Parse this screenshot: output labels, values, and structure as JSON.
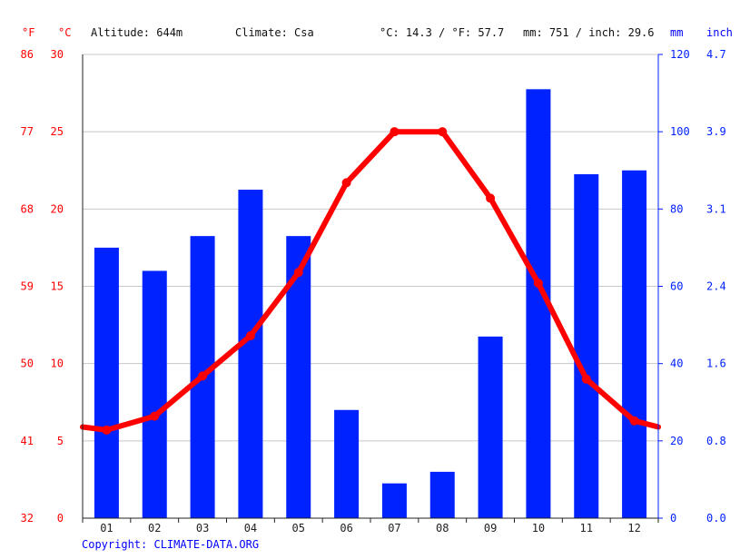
{
  "header": {
    "f_unit": "°F",
    "c_unit": "°C",
    "altitude": "Altitude: 644m",
    "climate": "Climate: Csa",
    "temp_summary": "°C: 14.3 / °F: 57.7",
    "precip_summary": "mm: 751 / inch: 29.6",
    "mm_unit": "mm",
    "inch_unit": "inch"
  },
  "footer": {
    "copyright": "Copyright: CLIMATE-DATA.ORG"
  },
  "colors": {
    "temperature": "#ff0000",
    "precipitation": "#0022ff",
    "grid": "#c8c8c8"
  },
  "chart_data": {
    "type": "bar+line",
    "categories": [
      "01",
      "02",
      "03",
      "04",
      "05",
      "06",
      "07",
      "08",
      "09",
      "10",
      "11",
      "12"
    ],
    "series": [
      {
        "name": "Precipitation (mm)",
        "type": "bar",
        "axis": "right",
        "values": [
          70,
          64,
          73,
          85,
          73,
          28,
          9,
          12,
          47,
          111,
          89,
          90
        ]
      },
      {
        "name": "Temperature (°C)",
        "type": "line",
        "axis": "left",
        "values": [
          5.7,
          6.6,
          9.2,
          11.8,
          15.9,
          21.7,
          25.0,
          25.0,
          20.7,
          15.2,
          9.0,
          6.3
        ]
      }
    ],
    "edge_values": {
      "temperature_left": 5.9,
      "temperature_right": 5.9
    },
    "left_axis_c": {
      "ylim": [
        0,
        30
      ],
      "ticks": [
        "0",
        "5",
        "10",
        "15",
        "20",
        "25",
        "30"
      ]
    },
    "left_axis_f": {
      "ticks": [
        "32",
        "41",
        "50",
        "59",
        "68",
        "77",
        "86"
      ]
    },
    "right_axis_mm": {
      "ylim": [
        0,
        120
      ],
      "ticks": [
        "0",
        "20",
        "40",
        "60",
        "80",
        "100",
        "120"
      ]
    },
    "right_axis_inch": {
      "ticks": [
        "0.0",
        "0.8",
        "1.6",
        "2.4",
        "3.1",
        "3.9",
        "4.7"
      ]
    },
    "grid": true
  }
}
